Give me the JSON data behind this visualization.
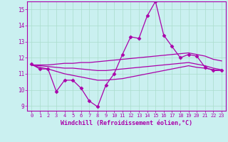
{
  "xlabel": "Windchill (Refroidissement éolien,°C)",
  "background_color": "#caf0f0",
  "grid_color": "#aaddcc",
  "line_color": "#aa00aa",
  "xlim": [
    -0.5,
    23.5
  ],
  "ylim": [
    8.7,
    15.5
  ],
  "yticks": [
    9,
    10,
    11,
    12,
    13,
    14,
    15
  ],
  "xticks": [
    0,
    1,
    2,
    3,
    4,
    5,
    6,
    7,
    8,
    9,
    10,
    11,
    12,
    13,
    14,
    15,
    16,
    17,
    18,
    19,
    20,
    21,
    22,
    23
  ],
  "series_main": [
    11.6,
    11.3,
    11.3,
    9.9,
    10.6,
    10.6,
    10.1,
    9.3,
    8.95,
    10.3,
    11.0,
    12.2,
    13.3,
    13.2,
    14.6,
    15.5,
    13.4,
    12.7,
    12.0,
    12.2,
    12.1,
    11.4,
    11.2,
    11.2
  ],
  "series_reg1": [
    11.55,
    11.55,
    11.55,
    11.6,
    11.65,
    11.65,
    11.7,
    11.7,
    11.75,
    11.8,
    11.85,
    11.9,
    11.95,
    12.0,
    12.05,
    12.1,
    12.15,
    12.2,
    12.25,
    12.3,
    12.2,
    12.1,
    11.9,
    11.8
  ],
  "series_reg2": [
    11.55,
    11.5,
    11.45,
    11.4,
    11.35,
    11.35,
    11.3,
    11.25,
    11.2,
    11.2,
    11.25,
    11.3,
    11.35,
    11.4,
    11.45,
    11.5,
    11.55,
    11.6,
    11.65,
    11.7,
    11.6,
    11.5,
    11.35,
    11.25
  ],
  "series_reg3": [
    11.55,
    11.4,
    11.3,
    11.15,
    11.0,
    10.9,
    10.8,
    10.7,
    10.6,
    10.6,
    10.65,
    10.7,
    10.8,
    10.9,
    11.0,
    11.1,
    11.2,
    11.3,
    11.4,
    11.5,
    11.4,
    11.35,
    11.25,
    11.2
  ]
}
